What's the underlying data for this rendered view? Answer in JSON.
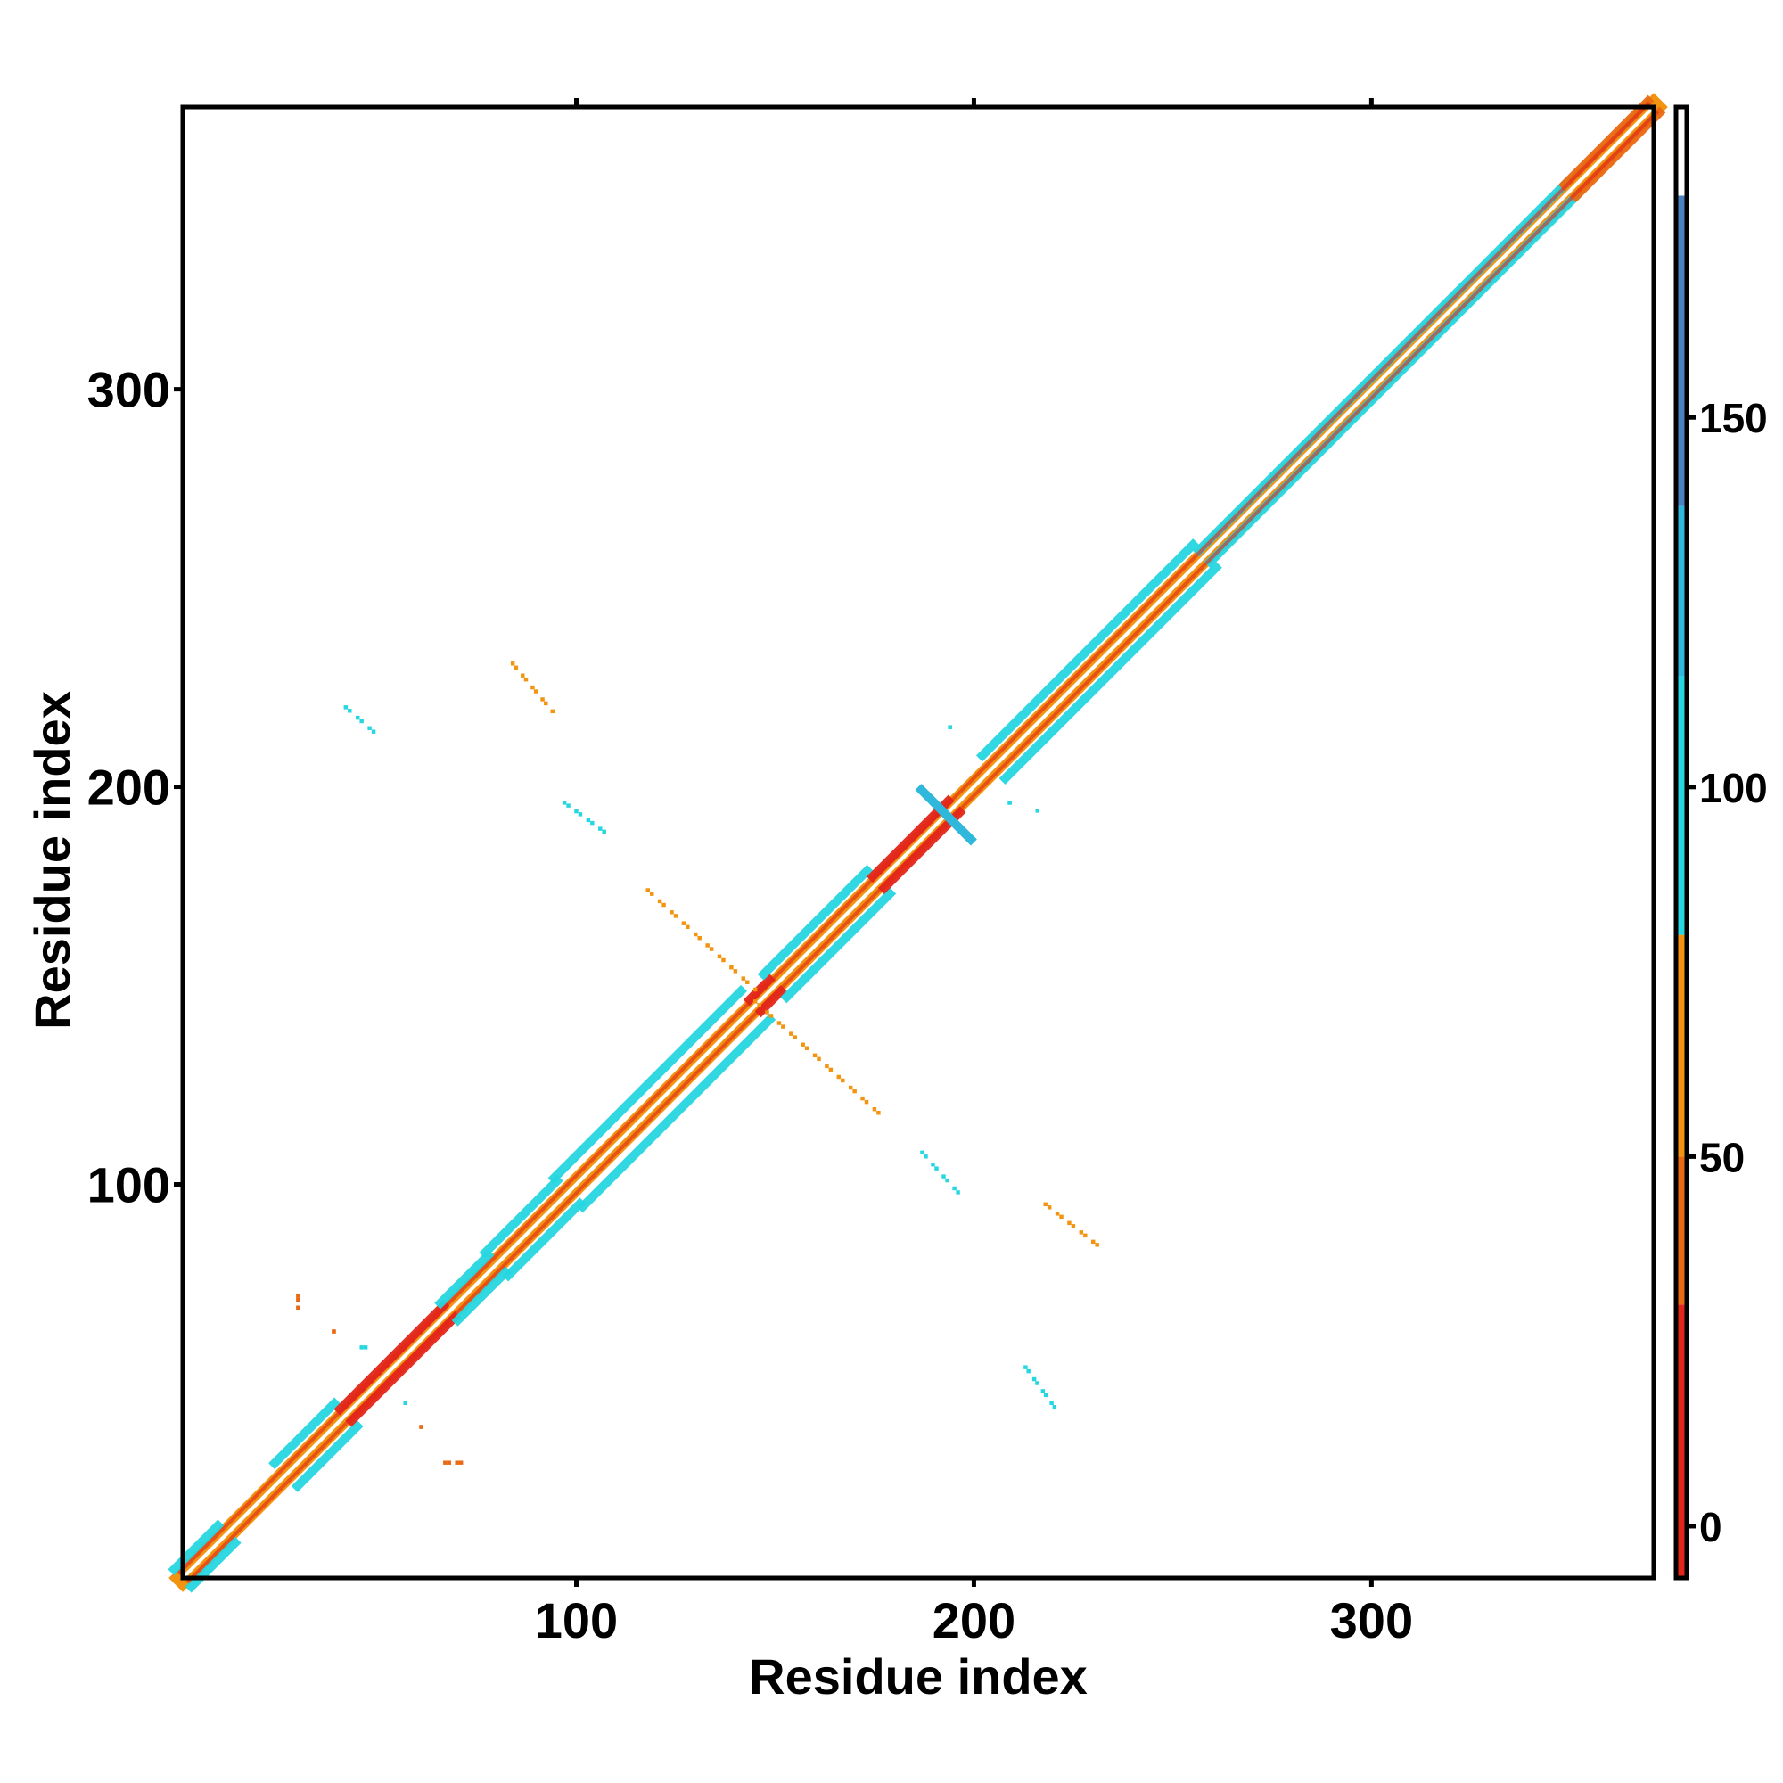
{
  "chart_data": {
    "type": "heatmap",
    "title": "",
    "xlabel": "Residue index",
    "ylabel": "Residue index",
    "xlim": [
      1,
      371
    ],
    "ylim": [
      1,
      371
    ],
    "x_ticks": [
      100,
      200,
      300
    ],
    "y_ticks": [
      100,
      200,
      300
    ],
    "x_tick_labels": [
      "100",
      "200",
      "300"
    ],
    "y_tick_labels": [
      "100",
      "200",
      "300"
    ],
    "grid": false,
    "colorbar": {
      "ticks": [
        0,
        50,
        100,
        150
      ],
      "tick_labels": [
        "0",
        "50",
        "100",
        "150"
      ],
      "range": [
        -7,
        192
      ],
      "bands": [
        {
          "from": -7,
          "to": 30,
          "color": "#e3261b"
        },
        {
          "from": 30,
          "to": 50,
          "color": "#e96a12"
        },
        {
          "from": 50,
          "to": 80,
          "color": "#f29410"
        },
        {
          "from": 80,
          "to": 115,
          "color": "#26d6e0"
        },
        {
          "from": 115,
          "to": 138,
          "color": "#2fb7dc"
        },
        {
          "from": 138,
          "to": 180,
          "color": "#4a82c0"
        },
        {
          "from": 180,
          "to": 192,
          "color": "#ffffff"
        }
      ]
    },
    "diagonal": {
      "from": 1,
      "to": 371,
      "color": "#f29410",
      "segments": [
        {
          "from": 1,
          "to": 12,
          "half_width": 3,
          "color": "#26d6e0"
        },
        {
          "from": 27,
          "to": 42,
          "half_width": 4,
          "color": "#26d6e0"
        },
        {
          "from": 42,
          "to": 68,
          "half_width": 2,
          "color": "#e3261b"
        },
        {
          "from": 68,
          "to": 80,
          "half_width": 3,
          "color": "#26d6e0"
        },
        {
          "from": 80,
          "to": 98,
          "half_width": 4,
          "color": "#26d6e0"
        },
        {
          "from": 98,
          "to": 145,
          "half_width": 5,
          "color": "#26d6e0"
        },
        {
          "from": 145,
          "to": 150,
          "half_width": 2,
          "color": "#e3261b"
        },
        {
          "from": 150,
          "to": 176,
          "half_width": 4,
          "color": "#26d6e0"
        },
        {
          "from": 176,
          "to": 195,
          "half_width": 2,
          "color": "#e3261b"
        },
        {
          "from": 205,
          "to": 258,
          "half_width": 4,
          "color": "#26d6e0"
        },
        {
          "from": 258,
          "to": 350,
          "half_width": 2,
          "color": "#26d6e0"
        },
        {
          "from": 350,
          "to": 371,
          "half_width": 2,
          "color": "#e96a12"
        }
      ]
    },
    "off_diagonal_contacts": [
      {
        "x1": 84,
        "y1": 231,
        "x2": 94,
        "y2": 219,
        "color": "#f29410"
      },
      {
        "x1": 42,
        "y1": 220,
        "x2": 50,
        "y2": 213,
        "color": "#26d6e0"
      },
      {
        "x1": 97,
        "y1": 196,
        "x2": 108,
        "y2": 188,
        "color": "#26d6e0"
      },
      {
        "x1": 118,
        "y1": 174,
        "x2": 145,
        "y2": 149,
        "color": "#f29410"
      },
      {
        "x1": 145,
        "y1": 146,
        "x2": 176,
        "y2": 118,
        "color": "#f29410"
      },
      {
        "x1": 187,
        "y1": 108,
        "x2": 196,
        "y2": 98,
        "color": "#26d6e0"
      },
      {
        "x1": 218,
        "y1": 95,
        "x2": 232,
        "y2": 84,
        "color": "#f29410"
      },
      {
        "x1": 213,
        "y1": 54,
        "x2": 221,
        "y2": 43,
        "color": "#26d6e0"
      },
      {
        "x1": 30,
        "y1": 72,
        "x2": 30,
        "y2": 69,
        "color": "#e96a12"
      },
      {
        "x1": 39,
        "y1": 63,
        "x2": 39,
        "y2": 63,
        "color": "#e96a12"
      },
      {
        "x1": 47,
        "y1": 59,
        "x2": 46,
        "y2": 59,
        "color": "#26d6e0"
      },
      {
        "x1": 57,
        "y1": 45,
        "x2": 57,
        "y2": 45,
        "color": "#26d6e0"
      },
      {
        "x1": 61,
        "y1": 39,
        "x2": 61,
        "y2": 39,
        "color": "#e96a12"
      },
      {
        "x1": 67,
        "y1": 30,
        "x2": 71,
        "y2": 30,
        "color": "#e96a12"
      },
      {
        "x1": 194,
        "y1": 215,
        "x2": 194,
        "y2": 215,
        "color": "#26d6e0"
      },
      {
        "x1": 209,
        "y1": 196,
        "x2": 209,
        "y2": 196,
        "color": "#26d6e0"
      },
      {
        "x1": 216,
        "y1": 194,
        "x2": 216,
        "y2": 194,
        "color": "#26d6e0"
      }
    ],
    "cross_feature": {
      "center": [
        193,
        193
      ],
      "arm": 7,
      "color": "#2fb7dc"
    }
  }
}
